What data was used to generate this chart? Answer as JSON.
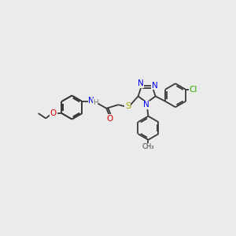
{
  "background_color": "#ebebeb",
  "bond_color": "#3a3a3a",
  "bond_width": 1.3,
  "figsize": [
    3.0,
    3.0
  ],
  "dpi": 100,
  "colors": {
    "O": "#dd0000",
    "N": "#0000ee",
    "S": "#aaaa00",
    "Cl": "#33aa00",
    "C": "#3a3a3a",
    "H": "#777777"
  },
  "font_size": 7.0,
  "xlim": [
    0,
    10
  ],
  "ylim": [
    0,
    10
  ]
}
